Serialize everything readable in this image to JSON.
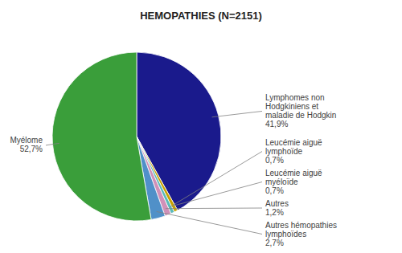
{
  "chart_data": {
    "type": "pie",
    "title": "HEMOPATHIES (N=2151)",
    "categories": [
      "Lymphomes non\nHodgkiniens et\nmaladie de Hodgkin\n41,9%",
      "Leucémie aiguë\nlymphoïde\n0,7%",
      "Leucémie aiguë\nmyéloïde\n0,7%",
      "Autres\n1,2%",
      "Autres hémopathies\nlymphoïdes\n2,7%",
      "Myélome\n52,7%"
    ],
    "values": [
      41.9,
      0.7,
      0.7,
      1.2,
      2.7,
      52.7
    ],
    "colors": [
      "#1a1a8c",
      "#c8a000",
      "#5ababa",
      "#d090b8",
      "#5090c8",
      "#3a9e3a"
    ]
  }
}
